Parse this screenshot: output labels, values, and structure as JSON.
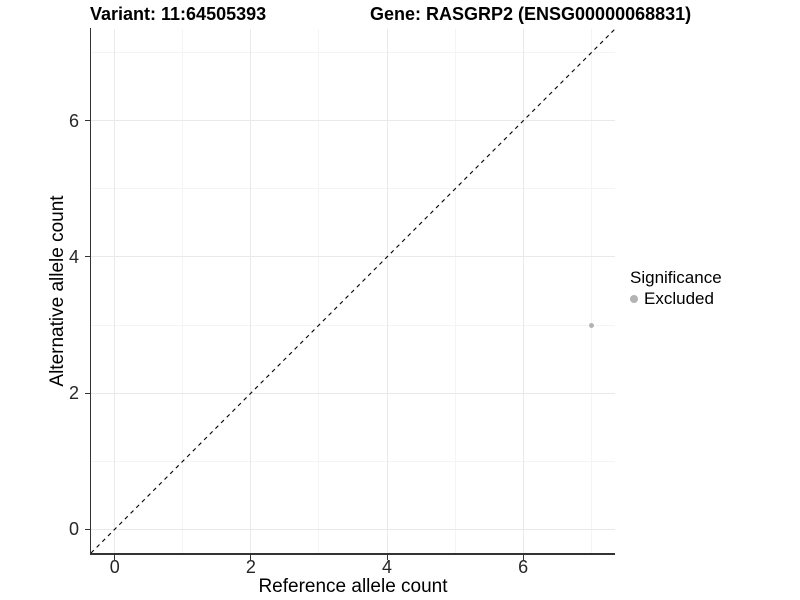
{
  "chart_data": {
    "type": "scatter",
    "title_left": "Variant: 11:64505393",
    "title_right": "Gene: RASGRP2 (ENSG00000068831)",
    "xlabel": "Reference allele count",
    "ylabel": "Alternative allele count",
    "xlim": [
      -0.35,
      7.35
    ],
    "ylim": [
      -0.35,
      7.35
    ],
    "x_major_ticks": [
      0,
      2,
      4,
      6
    ],
    "y_major_ticks": [
      0,
      2,
      4,
      6
    ],
    "x_minor_ticks": [
      1,
      3,
      5,
      7
    ],
    "y_minor_ticks": [
      1,
      3,
      5,
      7
    ],
    "grid": "on",
    "reference_line": {
      "style": "dashed",
      "slope": 1,
      "intercept": 0,
      "color": "#000000"
    },
    "series": [
      {
        "name": "Excluded",
        "color": "#b3b3b3",
        "points": [
          {
            "x": 7,
            "y": 3
          }
        ]
      }
    ],
    "legend": {
      "title": "Significance",
      "position": "right",
      "items": [
        {
          "label": "Excluded",
          "color": "#b3b3b3"
        }
      ]
    }
  },
  "colors": {
    "background": "#ffffff",
    "grid_major": "#e9e9e9",
    "grid_minor": "#f4f4f4",
    "axis_line": "#333333",
    "tick_text": "#262626",
    "title_text": "#000000"
  }
}
